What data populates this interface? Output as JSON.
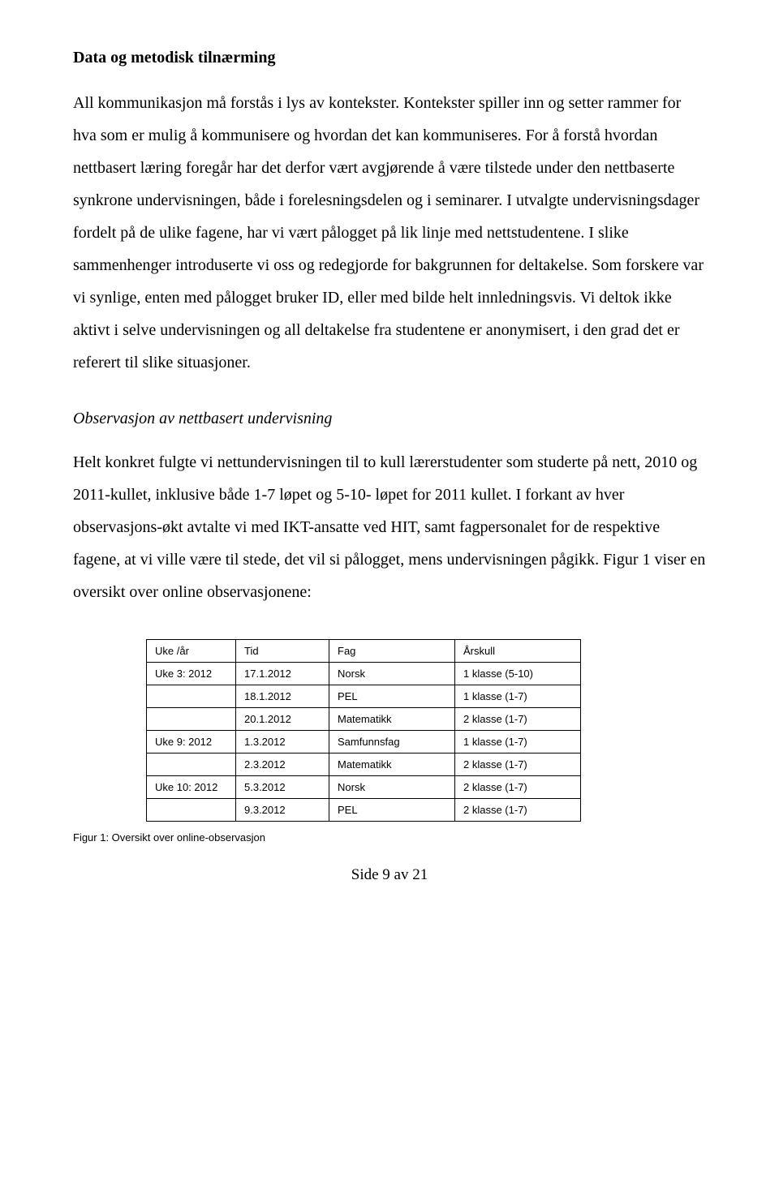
{
  "heading1": "Data og metodisk tilnærming",
  "para1": "All kommunikasjon må forstås i lys av kontekster. Kontekster spiller inn og setter rammer for hva som er mulig å kommunisere og hvordan det kan kommuniseres. For å forstå hvordan nettbasert læring foregår har det derfor vært avgjørende å være tilstede under den nettbaserte synkrone undervisningen, både i forelesningsdelen og i seminarer. I utvalgte undervisningsdager fordelt på de ulike fagene, har vi vært pålogget på lik linje med nettstudentene. I slike sammenhenger introduserte vi oss og redegjorde for bakgrunnen for deltakelse. Som forskere var vi synlige, enten med pålogget bruker ID, eller med bilde helt innledningsvis. Vi deltok ikke aktivt i selve undervisningen og all deltakelse fra studentene er anonymisert, i den grad det er referert til slike situasjoner.",
  "heading2": "Observasjon av nettbasert undervisning",
  "para2": "Helt konkret fulgte vi nettundervisningen til to kull lærerstudenter som studerte på nett, 2010 og 2011-kullet, inklusive både 1-7 løpet og 5-10- løpet for 2011 kullet. I forkant av hver observasjons-økt avtalte vi med IKT-ansatte ved HIT, samt fagpersonalet for de respektive fagene, at vi ville være til stede, det vil si pålogget, mens undervisningen pågikk. Figur 1 viser en oversikt over online observasjonene:",
  "table": {
    "headers": [
      "Uke /år",
      "Tid",
      "Fag",
      "Årskull"
    ],
    "rows": [
      [
        "Uke 3: 2012",
        "17.1.2012",
        "Norsk",
        "1 klasse (5-10)"
      ],
      [
        "",
        "18.1.2012",
        "PEL",
        "1 klasse (1-7)"
      ],
      [
        "",
        "20.1.2012",
        "Matematikk",
        "2 klasse (1-7)"
      ],
      [
        "Uke 9: 2012",
        "1.3.2012",
        "Samfunnsfag",
        "1 klasse (1-7)"
      ],
      [
        "",
        "2.3.2012",
        "Matematikk",
        "2 klasse (1-7)"
      ],
      [
        "Uke 10: 2012",
        "5.3.2012",
        "Norsk",
        "2 klasse (1-7)"
      ],
      [
        "",
        "9.3.2012",
        "PEL",
        "2 klasse (1-7)"
      ]
    ]
  },
  "caption": "Figur 1: Oversikt over online-observasjon",
  "footer": "Side 9 av 21"
}
